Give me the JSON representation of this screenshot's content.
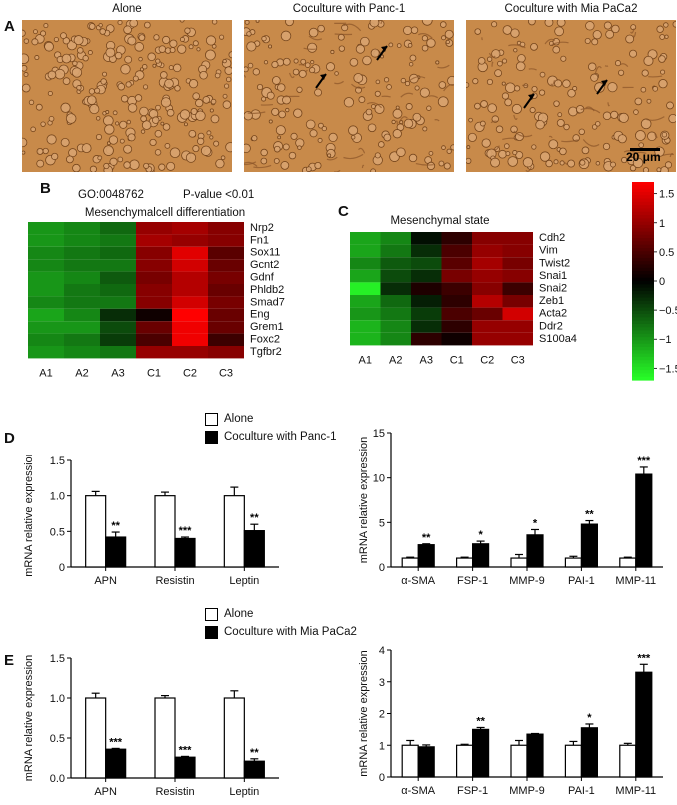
{
  "panels": {
    "a": "A",
    "b": "B",
    "c": "C",
    "d": "D",
    "e": "E"
  },
  "micrographs": {
    "titles": [
      "Alone",
      "Coculture with Panc-1",
      "Coculture with Mia PaCa2"
    ],
    "scale_bar": "20 μm"
  },
  "heatmap_b": {
    "go_term": "GO:0048762",
    "pvalue": "P-value <0.01",
    "title": "Mesenchymalcell differentiation",
    "genes": [
      "Nrp2",
      "Fn1",
      "Sox11",
      "Gcnt2",
      "Gdnf",
      "Phldb2",
      "Smad7",
      "Eng",
      "Grem1",
      "Foxc2",
      "Tgfbr2"
    ],
    "samples": [
      "A1",
      "A2",
      "A3",
      "C1",
      "C2",
      "C3"
    ],
    "values": [
      [
        -1.0,
        -0.9,
        -0.7,
        1.0,
        1.1,
        0.9
      ],
      [
        -1.0,
        -0.9,
        -0.8,
        1.1,
        1.0,
        0.9
      ],
      [
        -0.9,
        -0.8,
        -0.7,
        0.9,
        1.5,
        0.6
      ],
      [
        -0.9,
        -0.8,
        -0.8,
        0.9,
        1.4,
        0.7
      ],
      [
        -1.0,
        -0.9,
        -0.6,
        0.8,
        1.2,
        0.8
      ],
      [
        -1.0,
        -0.8,
        -0.7,
        0.9,
        1.2,
        0.7
      ],
      [
        -0.9,
        -0.8,
        -0.8,
        0.9,
        1.4,
        0.8
      ],
      [
        -1.1,
        -0.9,
        -0.3,
        0.1,
        1.7,
        0.7
      ],
      [
        -1.0,
        -1.0,
        -0.5,
        0.7,
        1.6,
        0.7
      ],
      [
        -0.9,
        -0.8,
        -0.4,
        0.5,
        1.6,
        0.4
      ],
      [
        -1.0,
        -0.9,
        -0.8,
        1.0,
        1.0,
        0.9
      ]
    ]
  },
  "heatmap_c": {
    "title": "Mesenchymal state",
    "genes": [
      "Cdh2",
      "Vim",
      "Twist2",
      "Snai1",
      "Snai2",
      "Zeb1",
      "Acta2",
      "Ddr2",
      "S100a4"
    ],
    "samples": [
      "A1",
      "A2",
      "A3",
      "C1",
      "C2",
      "C3"
    ],
    "values": [
      [
        -1.1,
        -0.9,
        -0.1,
        0.3,
        0.9,
        0.9
      ],
      [
        -1.1,
        -0.8,
        -0.3,
        0.5,
        1.0,
        0.9
      ],
      [
        -0.9,
        -0.6,
        -0.5,
        0.6,
        1.1,
        0.8
      ],
      [
        -1.1,
        -0.5,
        -0.3,
        0.8,
        1.0,
        0.9
      ],
      [
        -1.6,
        -0.3,
        0.2,
        0.4,
        0.9,
        0.4
      ],
      [
        -1.1,
        -0.7,
        -0.2,
        0.3,
        1.2,
        0.8
      ],
      [
        -1.0,
        -0.8,
        -0.4,
        0.5,
        0.7,
        1.4
      ],
      [
        -1.2,
        -0.9,
        -0.3,
        0.3,
        1.0,
        1.0
      ],
      [
        -1.2,
        -0.9,
        0.3,
        0.1,
        1.0,
        1.0
      ]
    ]
  },
  "colorbar": {
    "ticks": [
      "1.5",
      "1",
      "0.5",
      "0",
      "−0.5",
      "−1",
      "−1.5"
    ],
    "range": [
      -1.7,
      1.7
    ]
  },
  "legends": {
    "d": {
      "alone": "Alone",
      "coculture": "Coculture with Panc-1"
    },
    "e": {
      "alone": "Alone",
      "coculture": "Coculture with Mia PaCa2"
    }
  },
  "chart_data": [
    {
      "id": "d_left",
      "type": "bar",
      "categories": [
        "APN",
        "Resistin",
        "Leptin"
      ],
      "series": [
        {
          "name": "Alone",
          "values": [
            1.0,
            1.0,
            1.0
          ],
          "errors": [
            0.06,
            0.05,
            0.12
          ]
        },
        {
          "name": "Coculture with Panc-1",
          "values": [
            0.42,
            0.4,
            0.51
          ],
          "errors": [
            0.07,
            0.02,
            0.09
          ]
        }
      ],
      "significance": [
        "**",
        "***",
        "**"
      ],
      "ylabel": "mRNA relative expression",
      "yticks": [
        "0",
        "0.5",
        "1.0",
        "1.5"
      ],
      "ylim": [
        0,
        1.5
      ]
    },
    {
      "id": "d_right",
      "type": "bar",
      "categories": [
        "α-SMA",
        "FSP-1",
        "MMP-9",
        "PAI-1",
        "MMP-11"
      ],
      "series": [
        {
          "name": "Alone",
          "values": [
            1.0,
            1.0,
            1.0,
            1.0,
            1.0
          ],
          "errors": [
            0.1,
            0.1,
            0.4,
            0.2,
            0.1
          ]
        },
        {
          "name": "Coculture with Panc-1",
          "values": [
            2.5,
            2.6,
            3.6,
            4.8,
            10.4
          ],
          "errors": [
            0.1,
            0.3,
            0.6,
            0.4,
            0.8
          ]
        }
      ],
      "significance": [
        "**",
        "*",
        "*",
        "**",
        "***"
      ],
      "ylabel": "mRNA relative expression",
      "yticks": [
        "0",
        "5",
        "10",
        "15"
      ],
      "ylim": [
        0,
        15
      ]
    },
    {
      "id": "e_left",
      "type": "bar",
      "categories": [
        "APN",
        "Resistin",
        "Leptin"
      ],
      "series": [
        {
          "name": "Alone",
          "values": [
            1.0,
            1.0,
            1.0
          ],
          "errors": [
            0.06,
            0.03,
            0.09
          ]
        },
        {
          "name": "Coculture with Mia PaCa2",
          "values": [
            0.36,
            0.26,
            0.21
          ],
          "errors": [
            0.01,
            0.01,
            0.03
          ]
        }
      ],
      "significance": [
        "***",
        "***",
        "**"
      ],
      "ylabel": "mRNA relative expression",
      "yticks": [
        "0.0",
        "0.5",
        "1.0",
        "1.5"
      ],
      "ylim": [
        0,
        1.5
      ]
    },
    {
      "id": "e_right",
      "type": "bar",
      "categories": [
        "α-SMA",
        "FSP-1",
        "MMP-9",
        "PAI-1",
        "MMP-11"
      ],
      "series": [
        {
          "name": "Alone",
          "values": [
            1.0,
            1.0,
            1.0,
            1.0,
            1.0
          ],
          "errors": [
            0.15,
            0.03,
            0.15,
            0.12,
            0.06
          ]
        },
        {
          "name": "Coculture with Mia PaCa2",
          "values": [
            0.95,
            1.5,
            1.35,
            1.55,
            3.3
          ],
          "errors": [
            0.06,
            0.06,
            0.02,
            0.12,
            0.25
          ]
        }
      ],
      "significance": [
        "",
        "**",
        "",
        "*",
        "***"
      ],
      "ylabel": "mRNA relative expression",
      "yticks": [
        "0",
        "1",
        "2",
        "3",
        "4"
      ],
      "ylim": [
        0,
        4
      ]
    }
  ]
}
